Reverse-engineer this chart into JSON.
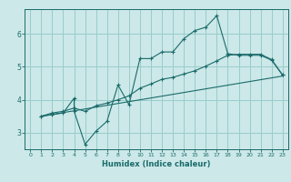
{
  "xlabel": "Humidex (Indice chaleur)",
  "ylabel": "",
  "background_color": "#cce8e8",
  "grid_color": "#99cccc",
  "line_color": "#1a6b6b",
  "xlim": [
    -0.5,
    23.5
  ],
  "ylim": [
    2.5,
    6.75
  ],
  "xticks": [
    0,
    1,
    2,
    3,
    4,
    5,
    6,
    7,
    8,
    9,
    10,
    11,
    12,
    13,
    14,
    15,
    16,
    17,
    18,
    19,
    20,
    21,
    22,
    23
  ],
  "yticks": [
    3,
    4,
    5,
    6
  ],
  "line1_x": [
    1,
    2,
    3,
    4,
    4,
    5,
    6,
    7,
    8,
    9,
    10,
    11,
    12,
    13,
    14,
    15,
    16,
    17,
    18,
    19,
    20,
    21,
    22,
    23
  ],
  "line1_y": [
    3.5,
    3.55,
    3.6,
    4.05,
    3.65,
    2.65,
    3.05,
    3.35,
    4.45,
    3.85,
    5.25,
    5.25,
    5.45,
    5.45,
    5.85,
    6.1,
    6.2,
    6.55,
    5.4,
    5.35,
    5.35,
    5.35,
    5.2,
    4.75
  ],
  "line2_x": [
    1,
    2,
    3,
    4,
    5,
    6,
    7,
    8,
    9,
    10,
    11,
    12,
    13,
    14,
    15,
    16,
    17,
    18,
    19,
    20,
    21,
    22,
    23
  ],
  "line2_y": [
    3.5,
    3.6,
    3.65,
    3.75,
    3.65,
    3.82,
    3.9,
    4.0,
    4.12,
    4.35,
    4.48,
    4.62,
    4.68,
    4.78,
    4.88,
    5.02,
    5.18,
    5.35,
    5.38,
    5.38,
    5.38,
    5.22,
    4.75
  ],
  "line3_x": [
    1,
    23
  ],
  "line3_y": [
    3.5,
    4.72
  ]
}
